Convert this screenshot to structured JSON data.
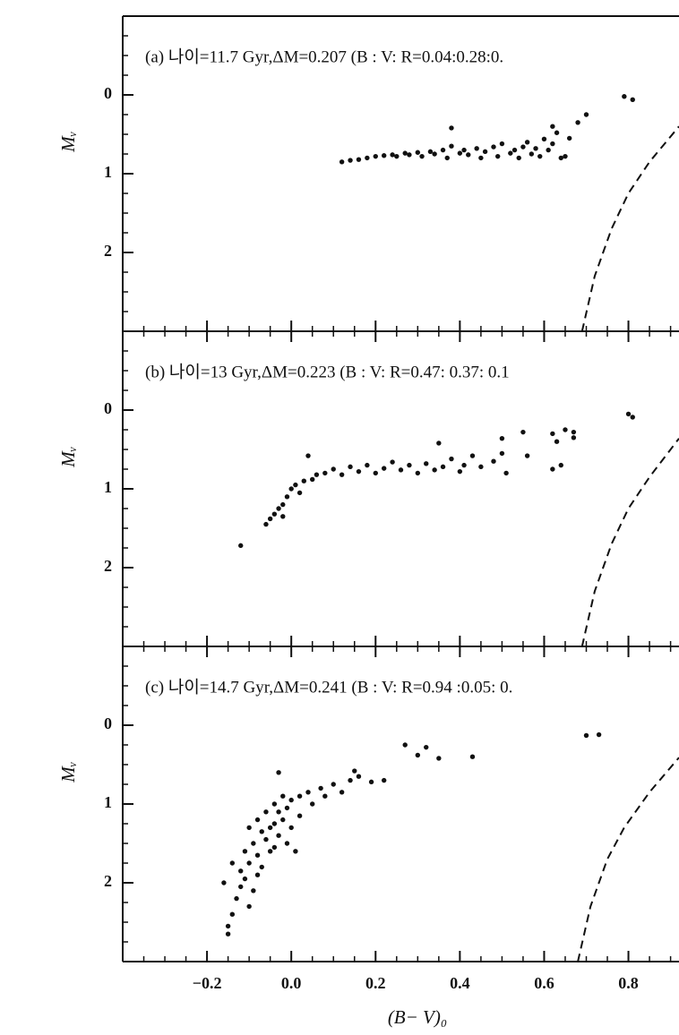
{
  "chart_data": [
    {
      "type": "scatter",
      "title": "(a) 나이=11.7 Gyr,ΔM=0.207  (B : V: R=0.04:0.28:0.",
      "ylabel": "Mᵥ",
      "color": "#111111",
      "xlim": [
        -0.4,
        0.92
      ],
      "ylim": [
        3,
        -1
      ],
      "xticks": [
        -0.2,
        0,
        0.2,
        0.4,
        0.6,
        0.8
      ],
      "yticks": [
        0,
        1,
        2
      ],
      "x": [
        0.12,
        0.14,
        0.16,
        0.18,
        0.2,
        0.22,
        0.24,
        0.25,
        0.27,
        0.28,
        0.3,
        0.31,
        0.33,
        0.34,
        0.36,
        0.37,
        0.38,
        0.4,
        0.41,
        0.42,
        0.44,
        0.45,
        0.46,
        0.48,
        0.49,
        0.5,
        0.52,
        0.53,
        0.54,
        0.56,
        0.57,
        0.58,
        0.59,
        0.6,
        0.61,
        0.62,
        0.63,
        0.64,
        0.65,
        0.62,
        0.66,
        0.68,
        0.7,
        0.79,
        0.81,
        0.38,
        0.55
      ],
      "values": [
        0.85,
        0.83,
        0.82,
        0.8,
        0.78,
        0.77,
        0.76,
        0.78,
        0.74,
        0.76,
        0.73,
        0.78,
        0.72,
        0.75,
        0.7,
        0.8,
        0.65,
        0.74,
        0.7,
        0.76,
        0.68,
        0.8,
        0.72,
        0.66,
        0.78,
        0.62,
        0.74,
        0.7,
        0.8,
        0.6,
        0.75,
        0.68,
        0.78,
        0.56,
        0.7,
        0.62,
        0.48,
        0.8,
        0.78,
        0.4,
        0.55,
        0.35,
        0.25,
        0.02,
        0.06,
        0.42,
        0.66
      ],
      "curve": {
        "x": [
          0.69,
          0.72,
          0.76,
          0.8,
          0.85,
          0.92
        ],
        "values": [
          3.0,
          2.3,
          1.7,
          1.25,
          0.85,
          0.4
        ]
      }
    },
    {
      "type": "scatter",
      "title": "(b) 나이=13 Gyr,ΔM=0.223  (B : V: R=0.47: 0.37: 0.1",
      "ylabel": "Mᵥ",
      "color": "#111111",
      "xlim": [
        -0.4,
        0.92
      ],
      "ylim": [
        3,
        -1
      ],
      "xticks": [
        -0.2,
        0,
        0.2,
        0.4,
        0.6,
        0.8
      ],
      "yticks": [
        0,
        1,
        2
      ],
      "x": [
        -0.12,
        -0.06,
        -0.05,
        -0.04,
        -0.03,
        -0.02,
        -0.02,
        -0.01,
        0.0,
        0.01,
        0.02,
        0.03,
        0.04,
        0.05,
        0.06,
        0.08,
        0.1,
        0.12,
        0.14,
        0.16,
        0.18,
        0.2,
        0.22,
        0.24,
        0.26,
        0.28,
        0.3,
        0.32,
        0.34,
        0.36,
        0.38,
        0.4,
        0.41,
        0.43,
        0.45,
        0.48,
        0.5,
        0.5,
        0.51,
        0.55,
        0.56,
        0.62,
        0.63,
        0.62,
        0.65,
        0.64,
        0.67,
        0.67,
        0.8,
        0.81,
        0.35
      ],
      "values": [
        1.72,
        1.45,
        1.38,
        1.32,
        1.25,
        1.2,
        1.35,
        1.1,
        1.0,
        0.95,
        1.05,
        0.9,
        0.58,
        0.88,
        0.82,
        0.8,
        0.75,
        0.82,
        0.72,
        0.78,
        0.7,
        0.8,
        0.74,
        0.66,
        0.76,
        0.7,
        0.8,
        0.68,
        0.76,
        0.72,
        0.62,
        0.78,
        0.7,
        0.58,
        0.72,
        0.65,
        0.36,
        0.55,
        0.8,
        0.28,
        0.58,
        0.3,
        0.4,
        0.75,
        0.25,
        0.7,
        0.28,
        0.35,
        0.05,
        0.09,
        0.42
      ],
      "curve": {
        "x": [
          0.69,
          0.72,
          0.76,
          0.8,
          0.85,
          0.92
        ],
        "values": [
          3.0,
          2.3,
          1.7,
          1.25,
          0.85,
          0.36
        ]
      }
    },
    {
      "type": "scatter",
      "title": "(c) 나이=14.7 Gyr,ΔM=0.241  (B : V: R=0.94 :0.05: 0.",
      "ylabel": "Mᵥ",
      "xlabel": "(B− V)₀",
      "color": "#111111",
      "xlim": [
        -0.4,
        0.92
      ],
      "ylim": [
        3,
        -1
      ],
      "xticks": [
        {
          "value": -0.2,
          "label": "−0.2"
        },
        {
          "value": 0,
          "label": "0.0"
        },
        0.2,
        0.4,
        0.6,
        0.8
      ],
      "yticks": [
        0,
        1,
        2
      ],
      "x": [
        -0.15,
        -0.15,
        -0.16,
        -0.14,
        -0.13,
        -0.14,
        -0.12,
        -0.12,
        -0.11,
        -0.11,
        -0.1,
        -0.1,
        -0.1,
        -0.09,
        -0.09,
        -0.08,
        -0.08,
        -0.08,
        -0.07,
        -0.07,
        -0.06,
        -0.06,
        -0.05,
        -0.05,
        -0.04,
        -0.04,
        -0.04,
        -0.03,
        -0.03,
        -0.03,
        -0.02,
        -0.02,
        -0.01,
        -0.01,
        0.0,
        0.0,
        0.01,
        0.02,
        0.02,
        0.04,
        0.05,
        0.07,
        0.08,
        0.1,
        0.12,
        0.14,
        0.15,
        0.16,
        0.19,
        0.22,
        0.27,
        0.3,
        0.32,
        0.35,
        0.43,
        0.7,
        0.73
      ],
      "values": [
        2.65,
        2.55,
        2.0,
        2.4,
        2.2,
        1.75,
        1.85,
        2.05,
        1.6,
        1.95,
        1.3,
        1.75,
        2.3,
        1.5,
        2.1,
        1.2,
        1.65,
        1.9,
        1.35,
        1.8,
        1.1,
        1.45,
        1.3,
        1.6,
        1.0,
        1.25,
        1.55,
        0.6,
        1.1,
        1.4,
        0.9,
        1.2,
        1.05,
        1.5,
        0.95,
        1.3,
        1.6,
        0.9,
        1.15,
        0.85,
        1.0,
        0.8,
        0.9,
        0.75,
        0.85,
        0.7,
        0.58,
        0.65,
        0.72,
        0.7,
        0.25,
        0.38,
        0.28,
        0.42,
        0.4,
        0.13,
        0.12
      ],
      "curve": {
        "x": [
          0.68,
          0.71,
          0.75,
          0.79,
          0.85,
          0.92
        ],
        "values": [
          3.0,
          2.3,
          1.7,
          1.3,
          0.85,
          0.41
        ]
      }
    }
  ]
}
